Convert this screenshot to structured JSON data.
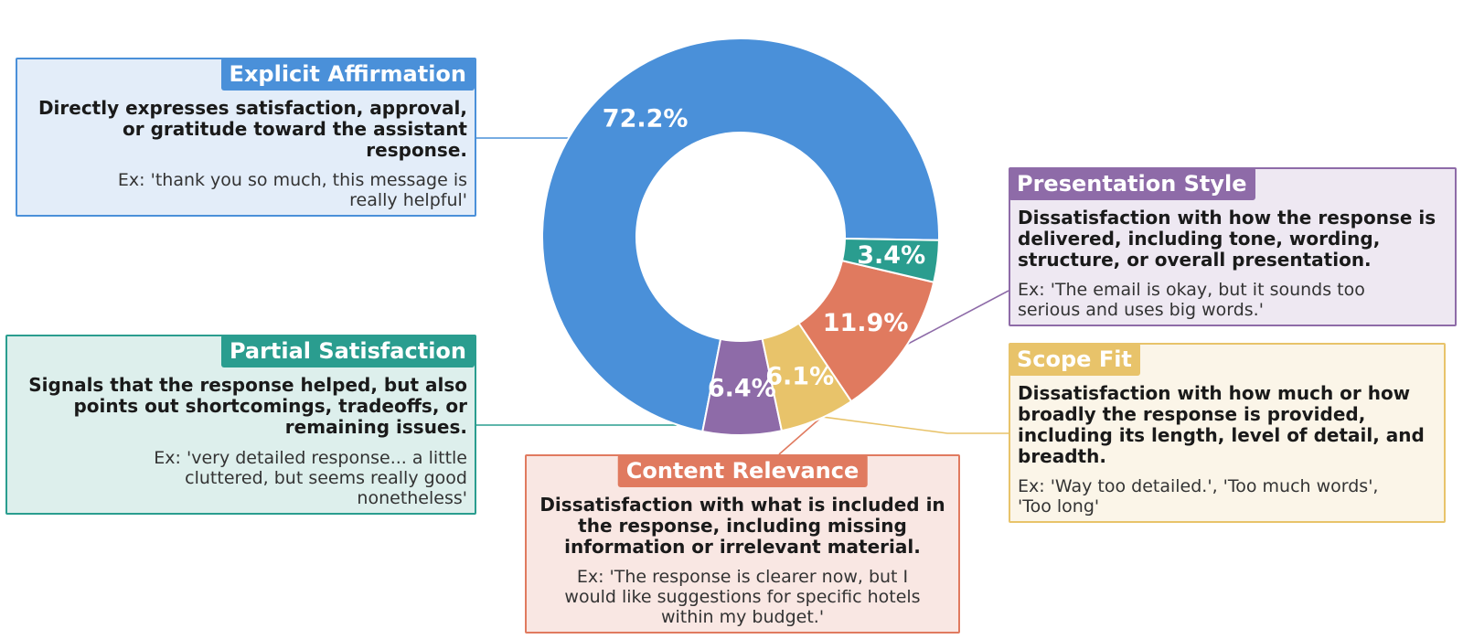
{
  "chart_data": {
    "type": "pie",
    "donut": true,
    "slices": [
      {
        "label": "Explicit Affirmation",
        "value": 72.2,
        "value_label": "72.2%",
        "color": "#4A90D9"
      },
      {
        "label": "Presentation Style",
        "value": 6.4,
        "value_label": "6.4%",
        "color": "#8E6BA8"
      },
      {
        "label": "Scope Fit",
        "value": 6.1,
        "value_label": "6.1%",
        "color": "#E8C36A"
      },
      {
        "label": "Content Relevance",
        "value": 11.9,
        "value_label": "11.9%",
        "color": "#E07A5F"
      },
      {
        "label": "Partial Satisfaction",
        "value": 3.4,
        "value_label": "3.4%",
        "color": "#2A9D8F"
      }
    ]
  },
  "annotations": {
    "explicit_affirmation": {
      "title": "Explicit Affirmation",
      "description": "Directly expresses satisfaction, approval, or gratitude toward the assistant response.",
      "example": "Ex: 'thank you so much, this message is really helpful'",
      "color": "#4A90D9",
      "bg": "#E3EDF9"
    },
    "presentation_style": {
      "title": "Presentation Style",
      "description": "Dissatisfaction with how the response is delivered, including tone, wording, structure, or overall presentation.",
      "example": "Ex: 'The email is okay, but it sounds too serious and uses big words.'",
      "color": "#8E6BA8",
      "bg": "#EEE8F2"
    },
    "scope_fit": {
      "title": "Scope Fit",
      "description": "Dissatisfaction with how much or how broadly the response is provided, including its length, level of detail, and breadth.",
      "example": "Ex: 'Way too detailed.', 'Too much words', 'Too long'",
      "color": "#E8C36A",
      "bg": "#FBF5E8"
    },
    "content_relevance": {
      "title": "Content Relevance",
      "description": "Dissatisfaction with what is included in the response, including missing information or irrelevant material.",
      "example": "Ex: 'The response is clearer now, but I would like suggestions for specific hotels within my budget.'",
      "color": "#E07A5F",
      "bg": "#F9E7E3"
    },
    "partial_satisfaction": {
      "title": "Partial Satisfaction",
      "description": "Signals that the response helped, but also points out shortcomings, tradeoffs, or remaining issues.",
      "example": "Ex: 'very detailed response... a little cluttered, but seems really good nonetheless'",
      "color": "#2A9D8F",
      "bg": "#DDEFEC"
    }
  }
}
